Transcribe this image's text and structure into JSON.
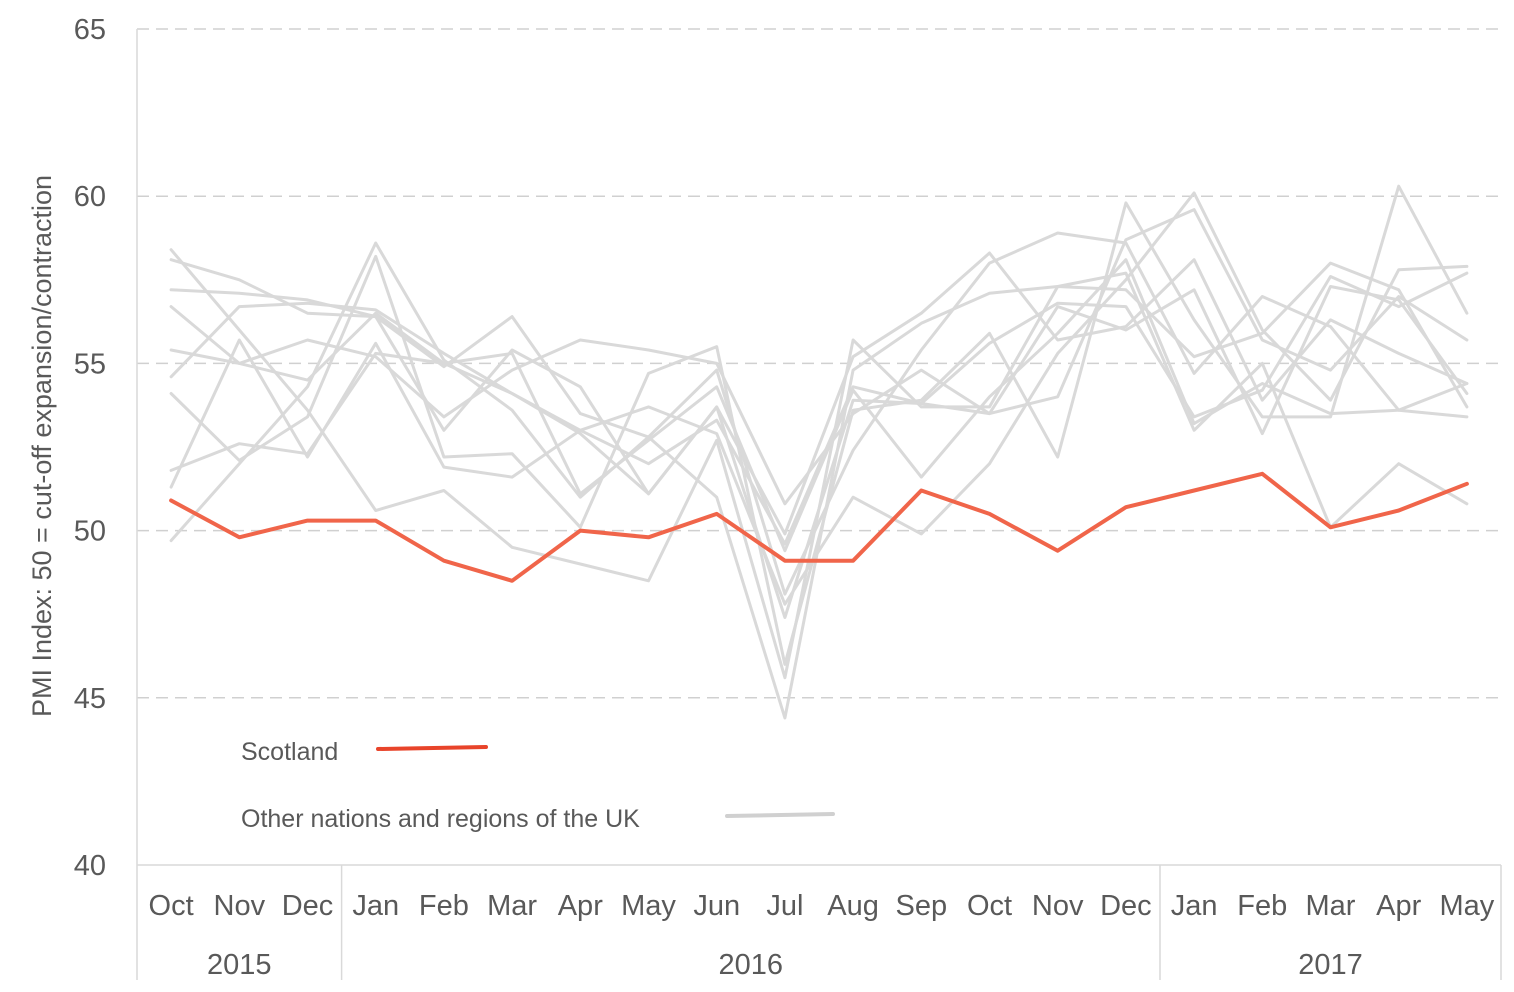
{
  "chart_data": {
    "type": "line",
    "ylabel": "PMI Index: 50 = cut-off expansion/contraction",
    "ylim": [
      40,
      65
    ],
    "yticks": [
      40,
      45,
      50,
      55,
      60,
      65
    ],
    "grid": "horizontal dashed",
    "categories": [
      "Oct",
      "Nov",
      "Dec",
      "Jan",
      "Feb",
      "Mar",
      "Apr",
      "May",
      "Jun",
      "Jul",
      "Aug",
      "Sep",
      "Oct",
      "Nov",
      "Dec",
      "Jan",
      "Feb",
      "Mar",
      "Apr",
      "May"
    ],
    "year_groups": [
      {
        "label": "2015",
        "count": 3
      },
      {
        "label": "2016",
        "count": 12
      },
      {
        "label": "2017",
        "count": 5
      }
    ],
    "legend": [
      {
        "label": "Scotland",
        "color": "#e8442a"
      },
      {
        "label": "Other nations and regions of the UK",
        "color": "#d0d0d0"
      }
    ],
    "colors": {
      "highlight": "#f0654a",
      "other": "#d9d9d9",
      "grid": "#d0d0d0",
      "text": "#595959"
    },
    "series": [
      {
        "name": "Scotland",
        "highlight": true,
        "values": [
          50.9,
          49.8,
          50.3,
          50.3,
          49.1,
          48.5,
          50.0,
          49.8,
          50.5,
          49.1,
          49.1,
          51.2,
          50.5,
          49.4,
          50.7,
          51.2,
          51.7,
          50.1,
          50.6,
          51.4
        ]
      },
      {
        "values": [
          58.4,
          56.0,
          53.6,
          50.6,
          51.2,
          49.5,
          49.0,
          48.5,
          52.7,
          45.6,
          55.7,
          53.7,
          53.7,
          57.3,
          57.7,
          53.0,
          55.0,
          50.1,
          52.0,
          50.8
        ]
      },
      {
        "values": [
          49.7,
          52.0,
          54.3,
          58.6,
          55.1,
          53.6,
          51.0,
          52.8,
          51.0,
          44.4,
          54.8,
          56.2,
          57.1,
          57.3,
          57.2,
          55.2,
          55.9,
          58.0,
          57.2,
          53.7
        ]
      },
      {
        "values": [
          54.1,
          52.1,
          53.4,
          58.2,
          52.2,
          52.3,
          50.1,
          54.7,
          55.5,
          46.0,
          53.6,
          53.9,
          55.9,
          52.2,
          59.8,
          56.3,
          53.4,
          53.4,
          60.3,
          56.5
        ]
      },
      {
        "values": [
          51.3,
          55.7,
          52.2,
          55.6,
          51.9,
          51.6,
          53.0,
          53.7,
          52.9,
          47.8,
          51.0,
          49.9,
          52.0,
          55.3,
          57.5,
          60.1,
          56.0,
          53.9,
          57.8,
          57.9
        ]
      },
      {
        "values": [
          51.8,
          52.6,
          52.3,
          55.3,
          55.0,
          54.1,
          53.0,
          52.0,
          53.3,
          49.6,
          54.3,
          53.8,
          55.6,
          56.8,
          56.7,
          53.4,
          54.2,
          57.6,
          56.7,
          57.7
        ]
      },
      {
        "values": [
          54.6,
          56.7,
          56.8,
          56.6,
          55.3,
          54.1,
          52.9,
          51.1,
          53.7,
          49.9,
          55.2,
          56.5,
          58.3,
          55.7,
          56.1,
          58.1,
          53.9,
          56.3,
          55.3,
          54.4
        ]
      },
      {
        "values": [
          55.4,
          55.0,
          55.7,
          55.2,
          53.4,
          54.8,
          55.7,
          55.4,
          55.0,
          50.8,
          53.5,
          54.8,
          53.5,
          54.0,
          58.7,
          59.6,
          55.7,
          54.8,
          57.0,
          55.7
        ]
      },
      {
        "values": [
          57.2,
          57.1,
          56.9,
          56.4,
          53.0,
          55.4,
          54.3,
          51.1,
          53.7,
          47.4,
          53.9,
          53.8,
          53.5,
          56.7,
          56.0,
          57.2,
          52.9,
          57.3,
          56.9,
          54.1
        ]
      },
      {
        "values": [
          58.1,
          57.5,
          56.5,
          56.4,
          54.9,
          56.4,
          53.5,
          52.8,
          54.8,
          48.1,
          52.4,
          55.4,
          58.0,
          58.9,
          58.6,
          54.7,
          57.0,
          56.1,
          53.6,
          54.4
        ]
      },
      {
        "values": [
          56.7,
          55.0,
          54.5,
          56.5,
          55.0,
          55.3,
          51.1,
          52.7,
          54.3,
          49.4,
          54.2,
          51.6,
          54.0,
          55.9,
          58.1,
          53.2,
          54.4,
          53.5,
          53.6,
          53.4
        ]
      }
    ]
  }
}
